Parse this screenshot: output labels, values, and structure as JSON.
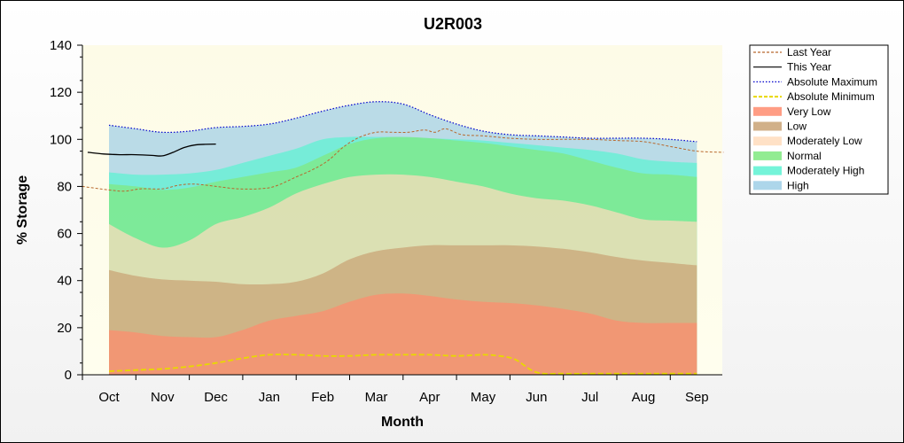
{
  "chart_data": {
    "type": "area",
    "title": "U2R003",
    "xlabel": "Month",
    "ylabel": "% Storage",
    "ylim": [
      0,
      140
    ],
    "yticks": [
      0,
      20,
      40,
      60,
      80,
      100,
      120,
      140
    ],
    "categories": [
      "Oct",
      "Nov",
      "Dec",
      "Jan",
      "Feb",
      "Mar",
      "Apr",
      "May",
      "Jun",
      "Jul",
      "Aug",
      "Sep"
    ],
    "band_x": [
      0,
      0.5,
      1,
      1.5,
      2,
      2.5,
      3,
      3.5,
      4,
      4.5,
      5,
      5.5,
      6,
      6.5,
      7,
      7.5,
      8,
      8.5,
      9,
      9.5,
      10,
      10.5,
      11
    ],
    "bands": [
      {
        "name": "Very Low",
        "color": "#ff8c6e",
        "upper": [
          19,
          18,
          16.5,
          16,
          16,
          19,
          23,
          25,
          27,
          31,
          34,
          34.5,
          33.5,
          32,
          31,
          30.5,
          29.5,
          28,
          26,
          23,
          22,
          22,
          22
        ]
      },
      {
        "name": "Low",
        "color": "#c9a274",
        "upper": [
          44.5,
          42,
          40.5,
          40,
          39.5,
          38.5,
          38.5,
          39.5,
          43,
          49,
          52.5,
          54,
          55,
          55,
          55,
          55,
          54.5,
          53.5,
          52,
          50,
          48.5,
          47.5,
          46.5
        ]
      },
      {
        "name": "Moderately Low",
        "color": "#ffdcbc",
        "upper": [
          64,
          58,
          54,
          57,
          64,
          67,
          71,
          77,
          81,
          84,
          85,
          85,
          84,
          82,
          80,
          77,
          75,
          74,
          72,
          69,
          66,
          65.5,
          65
        ]
      },
      {
        "name": "Normal",
        "color": "#7fe97f",
        "upper": [
          81,
          80,
          78.5,
          79.5,
          82,
          84,
          86,
          88,
          93,
          98,
          100.5,
          101,
          100.5,
          99.5,
          98.5,
          97,
          95.5,
          94,
          91,
          88,
          85.5,
          85,
          84
        ]
      },
      {
        "name": "Moderately High",
        "color": "#5cf2d2",
        "upper": [
          86,
          85,
          85,
          85.5,
          87,
          90,
          93,
          96,
          100,
          101,
          101,
          101,
          100.5,
          100,
          99.5,
          98.5,
          97.5,
          96.5,
          95.5,
          94,
          91.5,
          90.5,
          90
        ]
      },
      {
        "name": "High",
        "color": "#9fcfe6",
        "upper": [
          106,
          104.5,
          103,
          103.5,
          105,
          105.5,
          106.5,
          109,
          112,
          114.5,
          116,
          115,
          110.5,
          106.5,
          103.5,
          102,
          101.5,
          101,
          100.5,
          100.5,
          100.5,
          100,
          99
        ]
      }
    ],
    "series": [
      {
        "name": "Last Year",
        "color": "#b8682d",
        "style": "dashed",
        "x": [
          -0.5,
          0,
          0.3,
          0.6,
          1,
          1.3,
          1.6,
          2,
          2.4,
          2.8,
          3.1,
          3.5,
          3.8,
          4.1,
          4.4,
          4.7,
          5,
          5.3,
          5.6,
          5.9,
          6.1,
          6.3,
          6.6,
          7,
          7.5,
          8,
          8.5,
          9,
          9.5,
          10,
          10.5,
          11,
          11.5
        ],
        "values": [
          80,
          78.5,
          78,
          79,
          79,
          80.5,
          81,
          80,
          79,
          79,
          80,
          84,
          87,
          91,
          97,
          101,
          103,
          103,
          103,
          104,
          103,
          104.5,
          102,
          101.5,
          100.5,
          100,
          100,
          100,
          99.5,
          99,
          97,
          95,
          94.5
        ]
      },
      {
        "name": "This Year",
        "color": "#000000",
        "style": "solid",
        "x": [
          -0.4,
          -0.1,
          0.2,
          0.5,
          0.8,
          1,
          1.2,
          1.4,
          1.6,
          1.8,
          2
        ],
        "values": [
          94.5,
          93.8,
          93.5,
          93.5,
          93.2,
          93,
          94.5,
          96.5,
          97.6,
          97.9,
          98
        ]
      },
      {
        "name": "Absolute Maximum",
        "color": "#0000cc",
        "style": "dotted",
        "x": [
          0,
          0.5,
          1,
          1.5,
          2,
          2.5,
          3,
          3.5,
          4,
          4.5,
          5,
          5.5,
          6,
          6.5,
          7,
          7.5,
          8,
          8.5,
          9,
          9.5,
          10,
          10.5,
          11
        ],
        "values": [
          106,
          104.5,
          103,
          103.5,
          105,
          105.5,
          106.5,
          109,
          112,
          114.5,
          116,
          115,
          110.5,
          106.5,
          103.5,
          102,
          101.5,
          101,
          100.5,
          100.5,
          100.5,
          100,
          99
        ]
      },
      {
        "name": "Absolute Minimum",
        "color": "#e8d800",
        "style": "dashed",
        "x": [
          0,
          0.5,
          1,
          1.5,
          2,
          2.5,
          3,
          3.5,
          4,
          4.5,
          5,
          5.5,
          6,
          6.5,
          7,
          7.3,
          7.6,
          8,
          8.5,
          9,
          9.5,
          10,
          10.5,
          11
        ],
        "values": [
          1.5,
          2,
          2.5,
          3.5,
          5,
          7,
          8.5,
          8.5,
          8,
          8,
          8.5,
          8.5,
          8.5,
          8,
          8.5,
          8,
          6.5,
          1,
          0.5,
          0.5,
          0.5,
          0.5,
          0.5,
          0.5
        ]
      }
    ],
    "legend": [
      {
        "label": "Last Year",
        "kind": "line",
        "color": "#b8682d",
        "style": "dashed"
      },
      {
        "label": "This Year",
        "kind": "line",
        "color": "#000000",
        "style": "solid"
      },
      {
        "label": "Absolute Maximum",
        "kind": "line",
        "color": "#0000cc",
        "style": "dotted"
      },
      {
        "label": "Absolute Minimum",
        "kind": "line",
        "color": "#e8d800",
        "style": "dashed"
      },
      {
        "label": "Very Low",
        "kind": "area",
        "color": "#ff8c6e"
      },
      {
        "label": "Low",
        "kind": "area",
        "color": "#c9a274"
      },
      {
        "label": "Moderately Low",
        "kind": "area",
        "color": "#ffdcbc"
      },
      {
        "label": "Normal",
        "kind": "area",
        "color": "#7fe97f"
      },
      {
        "label": "Moderately High",
        "kind": "area",
        "color": "#5cf2d2"
      },
      {
        "label": "High",
        "kind": "area",
        "color": "#9fcfe6"
      }
    ],
    "legend_position": "right",
    "plot_background": "#fffde6"
  }
}
